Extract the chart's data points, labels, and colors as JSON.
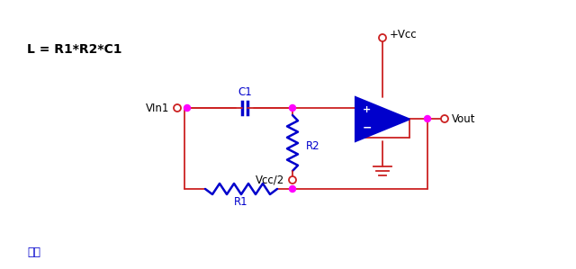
{
  "title": "L = R1*R2*C1",
  "caption": "图九",
  "bg_color": "#ffffff",
  "wire_color": "#cc2222",
  "component_color": "#0000cc",
  "node_color": "#ff00ff",
  "label_color": "#000000",
  "vcc_label": "+Vcc",
  "vout_label": "Vout",
  "vin_label": "VIn1",
  "c1_label": "C1",
  "r2_label": "R2",
  "r1_label": "R1",
  "vcc2_label": "Vcc/2",
  "wire_lw": 1.3,
  "comp_lw": 1.8
}
